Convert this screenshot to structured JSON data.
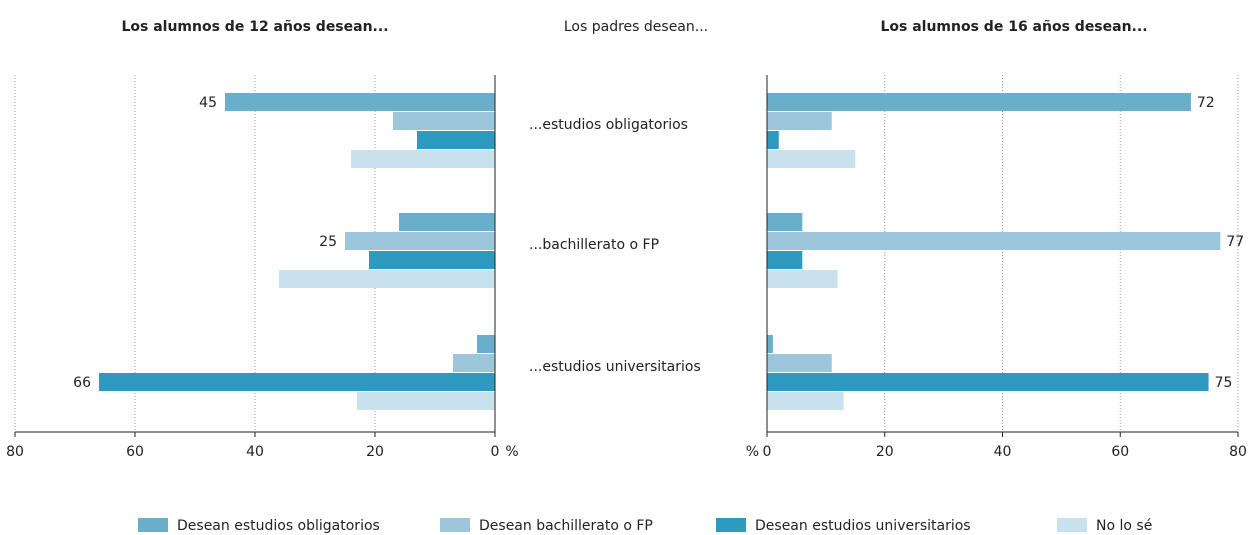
{
  "chart_data": [
    {
      "type": "bar",
      "orientation": "horizontal",
      "title": "Los alumnos de 12 años desean...",
      "category_title": "Los padres desean...",
      "categories": [
        "...estudios obligatorios",
        "...bachillerato o FP",
        "...estudios  universitarios"
      ],
      "xlim": [
        0,
        80
      ],
      "xticks": [
        0,
        20,
        40,
        60,
        80
      ],
      "x_reversed": true,
      "x_unit": "%",
      "grid": true,
      "series": [
        {
          "name": "Desean estudios obligatorios",
          "color": "#6aaecb",
          "values": [
            45,
            16,
            3
          ],
          "value_labels": [
            "45",
            null,
            null
          ]
        },
        {
          "name": "Desean bachillerato o FP",
          "color": "#9cc6dc",
          "values": [
            17,
            25,
            7
          ],
          "value_labels": [
            null,
            "25",
            null
          ]
        },
        {
          "name": "Desean estudios universitarios",
          "color": "#2f9abf",
          "values": [
            13,
            21,
            66
          ],
          "value_labels": [
            null,
            null,
            "66"
          ]
        },
        {
          "name": "No lo sé",
          "color": "#c8e2ed",
          "values": [
            24,
            36,
            23
          ],
          "value_labels": [
            null,
            null,
            null
          ]
        }
      ]
    },
    {
      "type": "bar",
      "orientation": "horizontal",
      "title": "Los alumnos de 16 años desean...",
      "xlim": [
        0,
        80
      ],
      "xticks": [
        0,
        20,
        40,
        60,
        80
      ],
      "x_reversed": false,
      "x_unit": "%",
      "grid": true,
      "series": [
        {
          "color": "#6aaecb",
          "values": [
            72,
            6,
            1
          ],
          "value_labels": [
            "72",
            null,
            null
          ]
        },
        {
          "color": "#9cc6dc",
          "values": [
            11,
            77,
            11
          ],
          "value_labels": [
            null,
            "77",
            null
          ]
        },
        {
          "color": "#2f9abf",
          "values": [
            2,
            6,
            75
          ],
          "value_labels": [
            null,
            null,
            "75"
          ]
        },
        {
          "color": "#c8e2ed",
          "values": [
            15,
            12,
            13
          ],
          "value_labels": [
            null,
            null,
            null
          ]
        }
      ]
    }
  ]
}
